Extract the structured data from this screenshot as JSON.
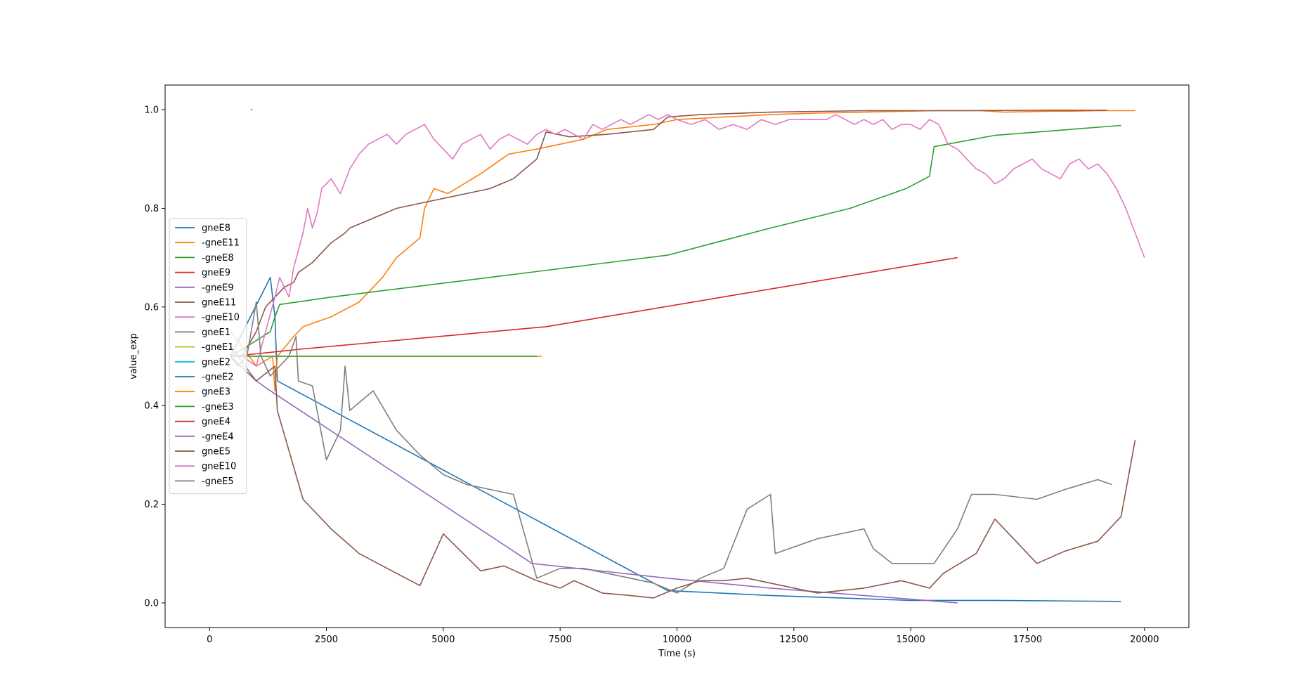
{
  "chart_data": {
    "type": "line",
    "title": "",
    "xlabel": "Time (s)",
    "ylabel": "value_exp",
    "xlim": [
      -950,
      20950
    ],
    "ylim": [
      -0.05,
      1.05
    ],
    "xticks": [
      0,
      2500,
      5000,
      7500,
      10000,
      12500,
      15000,
      17500,
      20000
    ],
    "yticks": [
      0.0,
      0.2,
      0.4,
      0.6,
      0.8,
      1.0
    ],
    "grid": false,
    "legend_position": "center-left",
    "series": [
      {
        "name": "gneE8",
        "color": "#1f77b4",
        "x": [
          450,
          1300,
          1400,
          1450,
          9800,
          12000,
          15000,
          16800,
          19500
        ],
        "y": [
          0.5,
          0.66,
          0.58,
          0.45,
          0.025,
          0.015,
          0.005,
          0.005,
          0.003
        ]
      },
      {
        "name": "-gneE11",
        "color": "#ff7f0e",
        "x": [
          450,
          700,
          1000,
          1350,
          1400,
          1450,
          1800,
          2000,
          2600,
          3200,
          3700,
          4000,
          4500,
          4600,
          4800,
          5100,
          5800,
          6400,
          7000,
          7500,
          8000,
          8500,
          9500,
          10000,
          11000,
          12000,
          13000,
          14000,
          15000,
          15500,
          16000,
          16500,
          17000,
          17500,
          18000,
          18500,
          19000,
          19500,
          19800
        ],
        "y": [
          0.55,
          0.52,
          0.48,
          0.5,
          0.43,
          0.5,
          0.54,
          0.56,
          0.58,
          0.61,
          0.66,
          0.7,
          0.74,
          0.8,
          0.84,
          0.83,
          0.87,
          0.91,
          0.92,
          0.93,
          0.94,
          0.96,
          0.97,
          0.98,
          0.985,
          0.99,
          0.993,
          0.995,
          0.997,
          0.998,
          0.998,
          0.998,
          0.995,
          0.996,
          0.997,
          0.997,
          0.998,
          0.998,
          0.998
        ]
      },
      {
        "name": "-gneE8",
        "color": "#2ca02c",
        "x": [
          450,
          800,
          1300,
          1400,
          1500,
          2600,
          6000,
          9800,
          12000,
          13700,
          14900,
          15400,
          15500,
          16800,
          19500
        ],
        "y": [
          0.5,
          0.52,
          0.55,
          0.58,
          0.605,
          0.62,
          0.66,
          0.705,
          0.76,
          0.8,
          0.84,
          0.865,
          0.925,
          0.948,
          0.968
        ]
      },
      {
        "name": "gneE9",
        "color": "#d62728",
        "x": [
          450,
          1000,
          2000,
          7200,
          16000
        ],
        "y": [
          0.5,
          0.505,
          0.515,
          0.56,
          0.7
        ]
      },
      {
        "name": "-gneE9",
        "color": "#9467bd",
        "x": [
          880,
          920
        ],
        "y": [
          1.0,
          1.0
        ]
      },
      {
        "name": "gneE11",
        "color": "#8c564b",
        "x": [
          450,
          700,
          1000,
          1200,
          1400,
          1600,
          1800,
          1900,
          2200,
          2400,
          2600,
          2900,
          3000,
          3500,
          4000,
          4500,
          5000,
          5500,
          6000,
          6500,
          7000,
          7200,
          7700,
          8500,
          9500,
          9800,
          10500,
          12000,
          14000,
          16000,
          18000,
          19200
        ],
        "y": [
          0.5,
          0.5,
          0.55,
          0.6,
          0.62,
          0.64,
          0.65,
          0.67,
          0.69,
          0.71,
          0.73,
          0.75,
          0.76,
          0.78,
          0.8,
          0.81,
          0.82,
          0.83,
          0.84,
          0.86,
          0.9,
          0.955,
          0.945,
          0.95,
          0.96,
          0.985,
          0.99,
          0.995,
          0.998,
          0.998,
          0.999,
          0.999
        ]
      },
      {
        "name": "-gneE10",
        "color": "#e377c2",
        "x": [
          450,
          700,
          1000,
          1200,
          1400,
          1500,
          1700,
          1800,
          2000,
          2100,
          2200,
          2300,
          2400,
          2600,
          2800,
          3000,
          3200,
          3400,
          3600,
          3800,
          4000,
          4200,
          4400,
          4600,
          4800,
          5000,
          5200,
          5400,
          5600,
          5800,
          6000,
          6200,
          6400,
          6600,
          6800,
          7000,
          7200,
          7400,
          7600,
          7800,
          8000,
          8200,
          8400,
          8600,
          8800,
          9000,
          9200,
          9400,
          9600,
          9800,
          10000,
          10300,
          10600,
          10900,
          11200,
          11500,
          11800,
          12100,
          12400,
          12700,
          13000,
          13200,
          13400,
          13600,
          13800,
          14000,
          14200,
          14400,
          14600,
          14800,
          15000,
          15200,
          15400,
          15600,
          15800,
          16000,
          16200,
          16400,
          16600,
          16800,
          17000,
          17200,
          17400,
          17600,
          17800,
          18000,
          18200,
          18400,
          18600,
          18800,
          19000,
          19200,
          19400,
          19600,
          19800,
          20000
        ],
        "y": [
          0.5,
          0.5,
          0.48,
          0.55,
          0.62,
          0.66,
          0.62,
          0.68,
          0.75,
          0.8,
          0.76,
          0.79,
          0.84,
          0.86,
          0.83,
          0.88,
          0.91,
          0.93,
          0.94,
          0.95,
          0.93,
          0.95,
          0.96,
          0.97,
          0.94,
          0.92,
          0.9,
          0.93,
          0.94,
          0.95,
          0.92,
          0.94,
          0.95,
          0.94,
          0.93,
          0.95,
          0.96,
          0.95,
          0.96,
          0.95,
          0.94,
          0.97,
          0.96,
          0.97,
          0.98,
          0.97,
          0.98,
          0.99,
          0.98,
          0.99,
          0.98,
          0.97,
          0.98,
          0.96,
          0.97,
          0.96,
          0.98,
          0.97,
          0.98,
          0.98,
          0.98,
          0.98,
          0.99,
          0.98,
          0.97,
          0.98,
          0.97,
          0.98,
          0.96,
          0.97,
          0.97,
          0.96,
          0.98,
          0.97,
          0.93,
          0.92,
          0.9,
          0.88,
          0.87,
          0.85,
          0.86,
          0.88,
          0.89,
          0.9,
          0.88,
          0.87,
          0.86,
          0.89,
          0.9,
          0.88,
          0.89,
          0.87,
          0.84,
          0.8,
          0.75,
          0.7
        ]
      },
      {
        "name": "gneE1",
        "color": "#7f7f7f",
        "x": [
          450,
          600,
          800,
          1000,
          1100,
          1300,
          1500,
          1700,
          1850,
          1900,
          2200,
          2500,
          2800,
          2900,
          3000,
          3500,
          4000,
          4500,
          5000,
          5500,
          6000,
          6500,
          7000,
          7500,
          8000,
          8500,
          9000,
          9500,
          10000,
          10500,
          11000,
          11500,
          12000,
          12100,
          13000,
          14000,
          14200,
          14600,
          15000,
          15500,
          16000,
          16300,
          16800,
          17700,
          18300,
          19000,
          19300
        ],
        "y": [
          0.5,
          0.48,
          0.5,
          0.61,
          0.5,
          0.46,
          0.48,
          0.5,
          0.54,
          0.45,
          0.44,
          0.29,
          0.35,
          0.48,
          0.39,
          0.43,
          0.35,
          0.3,
          0.26,
          0.24,
          0.23,
          0.22,
          0.05,
          0.07,
          0.07,
          0.06,
          0.05,
          0.04,
          0.02,
          0.05,
          0.07,
          0.19,
          0.22,
          0.1,
          0.13,
          0.15,
          0.11,
          0.08,
          0.08,
          0.08,
          0.15,
          0.22,
          0.22,
          0.21,
          0.23,
          0.25,
          0.24
        ]
      },
      {
        "name": "-gneE1",
        "color": "#bcbd22",
        "x": [],
        "y": []
      },
      {
        "name": "gneE2",
        "color": "#17becf",
        "x": [],
        "y": []
      },
      {
        "name": "-gneE2",
        "color": "#1f77b4",
        "x": [],
        "y": []
      },
      {
        "name": "gneE3",
        "color": "#ff7f0e",
        "x": [
          450,
          1000,
          7100
        ],
        "y": [
          0.5,
          0.5,
          0.5
        ]
      },
      {
        "name": "-gneE3",
        "color": "#2ca02c",
        "x": [
          450,
          1000,
          7000
        ],
        "y": [
          0.5,
          0.5,
          0.5
        ]
      },
      {
        "name": "gneE4",
        "color": "#d62728",
        "x": [],
        "y": []
      },
      {
        "name": "-gneE4",
        "color": "#9467bd",
        "x": [
          450,
          1000,
          1300,
          6900,
          9800,
          12000,
          16000
        ],
        "y": [
          0.52,
          0.45,
          0.43,
          0.08,
          0.05,
          0.03,
          0.0
        ]
      },
      {
        "name": "gneE5",
        "color": "#8c564b",
        "x": [
          450,
          1000,
          1400,
          1450,
          2000,
          2600,
          3200,
          3900,
          4500,
          5000,
          5800,
          6300,
          7000,
          7500,
          7800,
          8400,
          9000,
          9500,
          10000,
          10500,
          11000,
          11500,
          12000,
          13000,
          14000,
          14800,
          15400,
          15700,
          16400,
          16800,
          17700,
          18300,
          19000,
          19500,
          19800
        ],
        "y": [
          0.5,
          0.45,
          0.48,
          0.39,
          0.21,
          0.15,
          0.1,
          0.065,
          0.035,
          0.14,
          0.065,
          0.075,
          0.045,
          0.03,
          0.045,
          0.02,
          0.015,
          0.01,
          0.03,
          0.045,
          0.045,
          0.05,
          0.04,
          0.02,
          0.03,
          0.045,
          0.03,
          0.06,
          0.1,
          0.17,
          0.08,
          0.105,
          0.125,
          0.175,
          0.33
        ]
      },
      {
        "name": "gneE10",
        "color": "#e377c2",
        "x": [],
        "y": []
      },
      {
        "name": "-gneE5",
        "color": "#7f7f7f",
        "x": [],
        "y": []
      }
    ]
  }
}
